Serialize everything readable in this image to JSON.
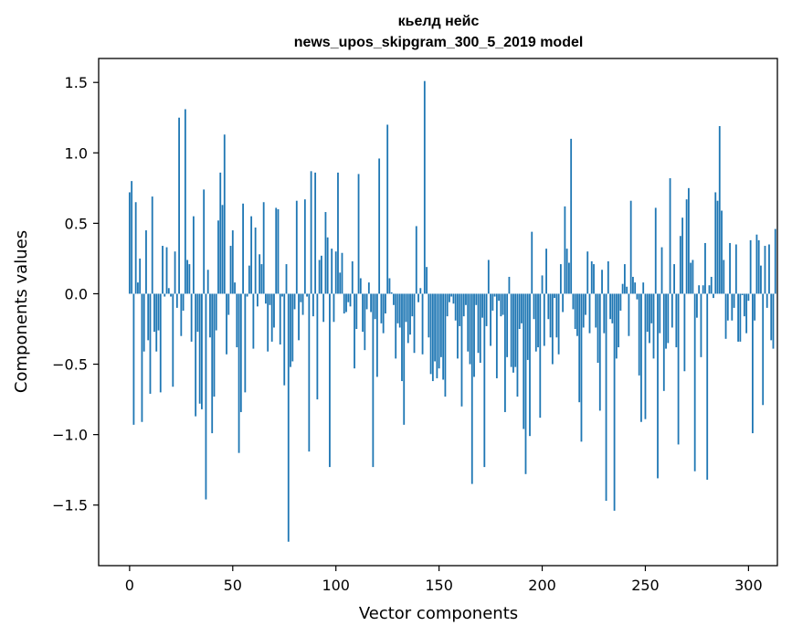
{
  "chart_data": {
    "type": "bar",
    "title": "кьелд нейс",
    "subtitle": "news_upos_skipgram_300_5_2019 model",
    "xlabel": "Vector components",
    "ylabel": "Components values",
    "xlim": [
      -15,
      314
    ],
    "ylim": [
      -1.93,
      1.67
    ],
    "xticks": [
      0,
      50,
      100,
      150,
      200,
      250,
      300
    ],
    "yticks": [
      -1.5,
      -1.0,
      -0.5,
      0.0,
      0.5,
      1.0,
      1.5
    ],
    "ytick_labels": [
      "−1.5",
      "−1.0",
      "−0.5",
      "0.0",
      "0.5",
      "1.0",
      "1.5"
    ],
    "bar_color": "#1f77b4",
    "grid": false,
    "values": [
      0.72,
      0.8,
      -0.93,
      0.65,
      0.08,
      0.25,
      -0.91,
      -0.41,
      0.45,
      -0.33,
      -0.71,
      0.69,
      -0.27,
      -0.41,
      -0.26,
      -0.7,
      0.34,
      -0.02,
      0.33,
      0.04,
      -0.02,
      -0.66,
      0.3,
      -0.1,
      1.25,
      -0.3,
      -0.12,
      1.31,
      0.24,
      0.21,
      -0.34,
      0.55,
      -0.87,
      -0.27,
      -0.78,
      -0.82,
      0.74,
      -1.46,
      0.17,
      -0.31,
      -0.99,
      -0.73,
      -0.26,
      0.52,
      0.86,
      0.63,
      1.13,
      -0.43,
      -0.15,
      0.34,
      0.45,
      0.08,
      -0.38,
      -1.13,
      -0.84,
      0.64,
      -0.7,
      -0.02,
      0.2,
      0.55,
      -0.39,
      0.47,
      -0.09,
      0.28,
      0.21,
      0.65,
      -0.07,
      -0.41,
      -0.08,
      -0.34,
      -0.24,
      0.61,
      0.6,
      -0.36,
      -0.02,
      -0.65,
      0.21,
      -1.76,
      -0.52,
      -0.48,
      -0.11,
      0.66,
      -0.33,
      -0.06,
      -0.15,
      0.67,
      -0.02,
      -1.12,
      0.87,
      -0.16,
      0.86,
      -0.75,
      0.24,
      0.27,
      -0.2,
      0.58,
      0.4,
      -1.23,
      0.32,
      -0.2,
      0.3,
      0.86,
      0.15,
      0.29,
      -0.14,
      -0.13,
      -0.06,
      -0.09,
      0.23,
      -0.53,
      -0.25,
      0.85,
      0.11,
      -0.27,
      -0.4,
      -0.11,
      0.08,
      -0.13,
      -1.23,
      -0.18,
      -0.59,
      0.96,
      -0.21,
      -0.28,
      -0.14,
      1.2,
      0.11,
      0.01,
      -0.08,
      -0.46,
      -0.21,
      -0.24,
      -0.62,
      -0.93,
      -0.2,
      -0.35,
      -0.29,
      -0.16,
      -0.42,
      0.48,
      -0.06,
      0.04,
      -0.43,
      1.51,
      0.19,
      -0.31,
      -0.57,
      -0.62,
      -0.48,
      -0.6,
      -0.53,
      -0.45,
      -0.61,
      -0.73,
      -0.16,
      -0.06,
      -0.02,
      -0.07,
      -0.19,
      -0.46,
      -0.23,
      -0.8,
      -0.16,
      -0.08,
      -0.41,
      -0.5,
      -1.35,
      -0.59,
      -0.08,
      -0.42,
      -0.49,
      -0.17,
      -1.23,
      -0.23,
      0.24,
      -0.37,
      -0.12,
      -0.02,
      -0.6,
      -0.05,
      -0.16,
      -0.15,
      -0.84,
      -0.45,
      0.12,
      -0.52,
      -0.56,
      -0.52,
      -0.73,
      -0.25,
      -0.21,
      -0.96,
      -1.28,
      -0.47,
      -1.01,
      0.44,
      -0.18,
      -0.41,
      -0.38,
      -0.88,
      0.13,
      -0.37,
      0.32,
      -0.18,
      -0.31,
      -0.5,
      -0.03,
      -0.31,
      -0.43,
      0.21,
      -0.13,
      0.62,
      0.32,
      0.22,
      1.1,
      -0.11,
      -0.25,
      -0.3,
      -0.77,
      -1.05,
      -0.24,
      -0.15,
      0.3,
      -0.28,
      0.23,
      0.21,
      -0.24,
      -0.49,
      -0.83,
      0.17,
      -0.28,
      -1.47,
      0.23,
      -0.18,
      -0.21,
      -1.54,
      -0.46,
      -0.38,
      -0.12,
      0.07,
      0.21,
      0.05,
      -0.3,
      0.66,
      0.12,
      0.08,
      -0.04,
      -0.58,
      -0.91,
      0.08,
      -0.89,
      -0.27,
      -0.35,
      -0.21,
      -0.46,
      0.61,
      -1.31,
      -0.28,
      0.33,
      -0.69,
      -0.39,
      -0.35,
      0.82,
      -0.24,
      0.21,
      -0.38,
      -1.07,
      0.41,
      0.54,
      -0.55,
      0.67,
      0.75,
      0.22,
      0.24,
      -1.26,
      -0.17,
      0.06,
      -0.45,
      0.06,
      0.36,
      -1.32,
      0.06,
      0.12,
      -0.03,
      0.72,
      0.66,
      1.19,
      0.59,
      0.24,
      -0.32,
      -0.19,
      0.36,
      -0.19,
      -0.1,
      0.35,
      -0.34,
      -0.34,
      -0.01,
      -0.16,
      -0.28,
      -0.05,
      0.38,
      -0.99,
      -0.19,
      0.42,
      0.38,
      0.2,
      -0.79,
      0.34,
      -0.1,
      0.35,
      -0.33,
      -0.39,
      0.46
    ]
  }
}
